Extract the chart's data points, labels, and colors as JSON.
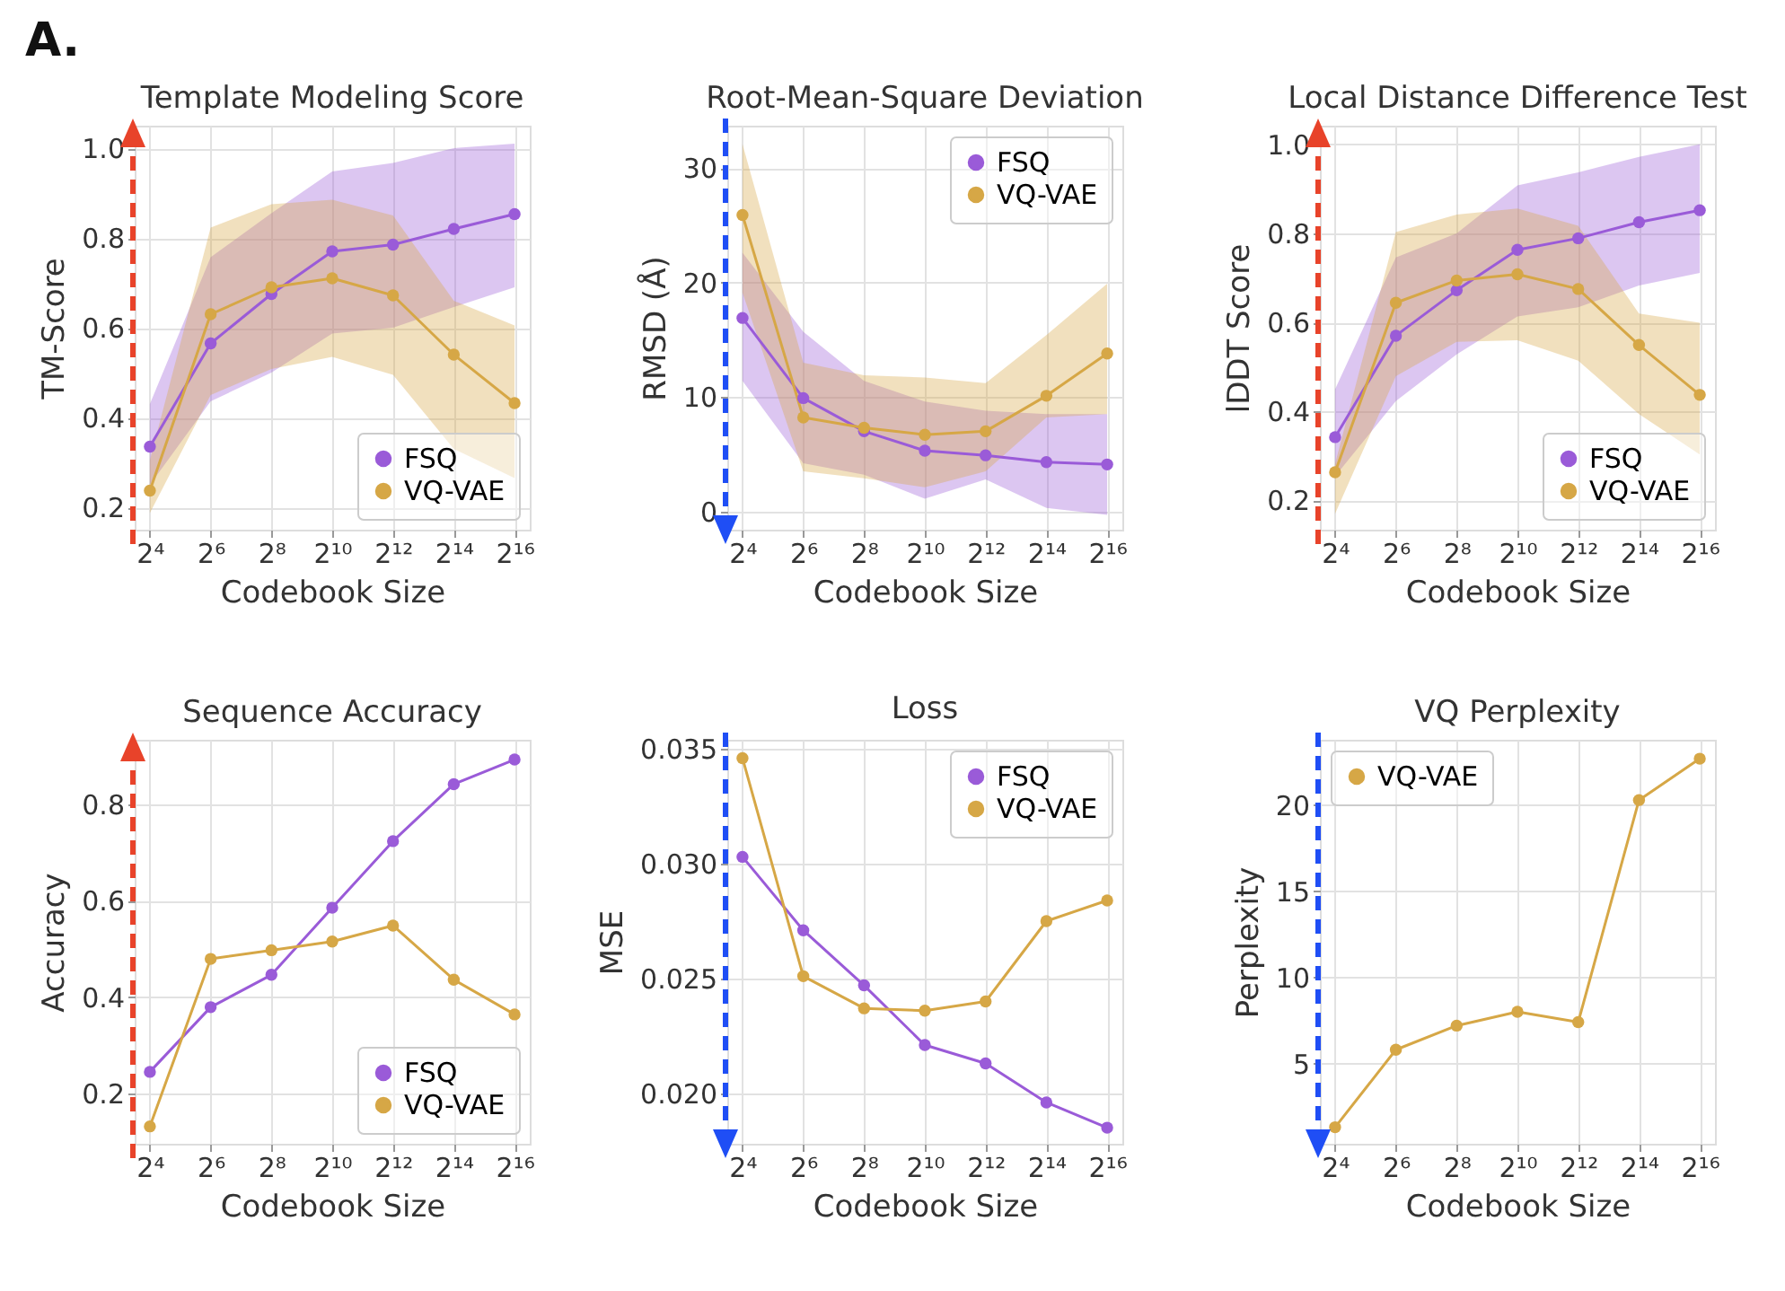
{
  "chart_data": [
    {
      "type": "line",
      "title": "Template Modeling Score",
      "xlabel": "Codebook Size",
      "ylabel": "TM-Score",
      "annotations": [
        "A."
      ],
      "categories": [
        "2⁴",
        "2⁶",
        "2⁸",
        "2¹⁰",
        "2¹²",
        "2¹⁴",
        "2¹⁶"
      ],
      "ylim": [
        0.15,
        1.05
      ],
      "yticks": [
        0.2,
        0.4,
        0.6,
        0.8,
        {
          "value": 1,
          "label": "1.0"
        }
      ],
      "grid": true,
      "legend": "bottom right",
      "marker": "circle",
      "line_style": "solid",
      "series": [
        {
          "name": "FSQ",
          "color": "#9a5bd8",
          "values": [
            0.335,
            0.565,
            0.675,
            0.77,
            0.785,
            0.82,
            0.853
          ],
          "lower": [
            0.25,
            0.436,
            0.5,
            0.587,
            0.6,
            0.646,
            0.69
          ],
          "upper": [
            0.43,
            0.757,
            0.855,
            0.948,
            0.967,
            1.0,
            1.01
          ]
        },
        {
          "name": "VQ-VAE",
          "color": "#d6a746",
          "values": [
            0.237,
            0.63,
            0.69,
            0.71,
            0.672,
            0.54,
            0.432
          ],
          "lower": [
            0.187,
            0.45,
            0.508,
            0.535,
            0.495,
            0.33,
            0.265
          ],
          "upper": [
            0.305,
            0.823,
            0.875,
            0.885,
            0.85,
            0.66,
            0.605
          ]
        }
      ]
    },
    {
      "type": "line",
      "title": "Root-Mean-Square Deviation",
      "xlabel": "Codebook Size",
      "ylabel": "RMSD (Å)",
      "categories": [
        "2⁴",
        "2⁶",
        "2⁸",
        "2¹⁰",
        "2¹²",
        "2¹⁴",
        "2¹⁶"
      ],
      "ylim": [
        -1.6,
        33.7
      ],
      "yticks": [
        0,
        10,
        20,
        30
      ],
      "grid": true,
      "legend": "top right",
      "marker": "circle",
      "line_style": "solid",
      "series": [
        {
          "name": "FSQ",
          "color": "#9a5bd8",
          "values": [
            16.9,
            9.9,
            7.0,
            5.3,
            4.9,
            4.3,
            4.1
          ],
          "lower": [
            11.4,
            4.2,
            3.2,
            1.1,
            2.8,
            0.3,
            -0.3
          ],
          "upper": [
            22.6,
            15.7,
            11.4,
            9.6,
            8.8,
            8.5,
            8.5
          ]
        },
        {
          "name": "VQ-VAE",
          "color": "#d6a746",
          "values": [
            25.9,
            8.2,
            7.3,
            6.7,
            7.0,
            10.1,
            13.8
          ],
          "lower": [
            19.1,
            3.5,
            2.9,
            2.1,
            3.5,
            8.2,
            8.5
          ],
          "upper": [
            32.1,
            13.0,
            11.9,
            11.7,
            11.2,
            15.4,
            19.9
          ]
        }
      ]
    },
    {
      "type": "line",
      "title": "Local Distance Difference Test",
      "xlabel": "Codebook Size",
      "ylabel": "lDDT Score",
      "categories": [
        "2⁴",
        "2⁶",
        "2⁸",
        "2¹⁰",
        "2¹²",
        "2¹⁴",
        "2¹⁶"
      ],
      "ylim": [
        0.134,
        1.042
      ],
      "yticks": [
        0.2,
        0.4,
        0.6,
        0.8,
        {
          "value": 1,
          "label": "1.0"
        }
      ],
      "grid": true,
      "legend": "bottom right",
      "marker": "circle",
      "line_style": "solid",
      "series": [
        {
          "name": "FSQ",
          "color": "#9a5bd8",
          "values": [
            0.342,
            0.57,
            0.672,
            0.763,
            0.789,
            0.825,
            0.852
          ],
          "lower": [
            0.254,
            0.423,
            0.528,
            0.613,
            0.634,
            0.683,
            0.711
          ],
          "upper": [
            0.45,
            0.746,
            0.8,
            0.908,
            0.937,
            0.972,
            1.0
          ]
        },
        {
          "name": "VQ-VAE",
          "color": "#d6a746",
          "values": [
            0.263,
            0.644,
            0.694,
            0.708,
            0.675,
            0.549,
            0.437
          ],
          "lower": [
            0.17,
            0.479,
            0.556,
            0.56,
            0.514,
            0.394,
            0.303
          ],
          "upper": [
            0.282,
            0.803,
            0.842,
            0.856,
            0.817,
            0.62,
            0.599
          ]
        }
      ]
    },
    {
      "type": "line",
      "title": "Sequence Accuracy",
      "xlabel": "Codebook Size",
      "ylabel": "Accuracy",
      "categories": [
        "2⁴",
        "2⁶",
        "2⁸",
        "2¹⁰",
        "2¹²",
        "2¹⁴",
        "2¹⁶"
      ],
      "ylim": [
        0.096,
        0.933
      ],
      "yticks": [
        0.2,
        0.4,
        0.6,
        0.8
      ],
      "grid": true,
      "legend": "bottom right",
      "marker": "circle",
      "line_style": "solid",
      "series": [
        {
          "name": "FSQ",
          "color": "#9a5bd8",
          "values": [
            0.245,
            0.379,
            0.446,
            0.585,
            0.723,
            0.841,
            0.892
          ]
        },
        {
          "name": "VQ-VAE",
          "color": "#d6a746",
          "values": [
            0.132,
            0.479,
            0.497,
            0.515,
            0.548,
            0.436,
            0.364
          ]
        }
      ]
    },
    {
      "type": "line",
      "title": "Loss",
      "xlabel": "Codebook Size",
      "ylabel": "MSE",
      "categories": [
        "2⁴",
        "2⁶",
        "2⁸",
        "2¹⁰",
        "2¹²",
        "2¹⁴",
        "2¹⁶"
      ],
      "ylim": [
        0.0178,
        0.0354
      ],
      "yticks": [
        {
          "value": 0.02,
          "label": "0.020"
        },
        0.025,
        {
          "value": 0.03,
          "label": "0.030"
        },
        0.035
      ],
      "grid": true,
      "legend": "top right",
      "marker": "circle",
      "line_style": "solid",
      "series": [
        {
          "name": "FSQ",
          "color": "#9a5bd8",
          "values": [
            0.0303,
            0.0271,
            0.0247,
            0.0221,
            0.0213,
            0.0196,
            0.0185
          ]
        },
        {
          "name": "VQ-VAE",
          "color": "#d6a746",
          "values": [
            0.0346,
            0.0251,
            0.0237,
            0.0236,
            0.024,
            0.0275,
            0.0284
          ]
        }
      ]
    },
    {
      "type": "line",
      "title": "VQ Perplexity",
      "xlabel": "Codebook Size",
      "ylabel": "Perplexity",
      "categories": [
        "2⁴",
        "2⁶",
        "2⁸",
        "2¹⁰",
        "2¹²",
        "2¹⁴",
        "2¹⁶"
      ],
      "ylim": [
        0.34,
        23.8
      ],
      "yticks": [
        5,
        10,
        15,
        20
      ],
      "grid": true,
      "legend": "top left",
      "marker": "circle",
      "line_style": "solid",
      "series": [
        {
          "name": "VQ-VAE",
          "color": "#d6a746",
          "values": [
            1.3,
            5.8,
            7.2,
            8.0,
            7.4,
            20.3,
            22.7
          ]
        }
      ]
    }
  ]
}
